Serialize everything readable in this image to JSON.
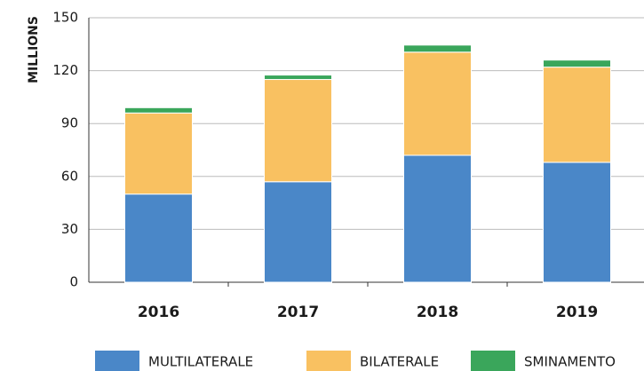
{
  "chart_data": {
    "type": "bar",
    "stacked": true,
    "y_label": "MILLIONS",
    "categories": [
      "2016",
      "2017",
      "2018",
      "2019"
    ],
    "series": [
      {
        "name": "MULTILATERALE",
        "color": "#4a87c8",
        "values": [
          50,
          57,
          72,
          68
        ]
      },
      {
        "name": "BILATERALE",
        "color": "#f9c161",
        "values": [
          46,
          58,
          58.5,
          54
        ]
      },
      {
        "name": "SMINAMENTO",
        "color": "#3aa65b",
        "values": [
          3,
          2.5,
          4,
          4
        ]
      }
    ],
    "ylim": [
      0,
      150
    ],
    "yticks": [
      0,
      30,
      60,
      90,
      120,
      150
    ],
    "grid": true
  }
}
